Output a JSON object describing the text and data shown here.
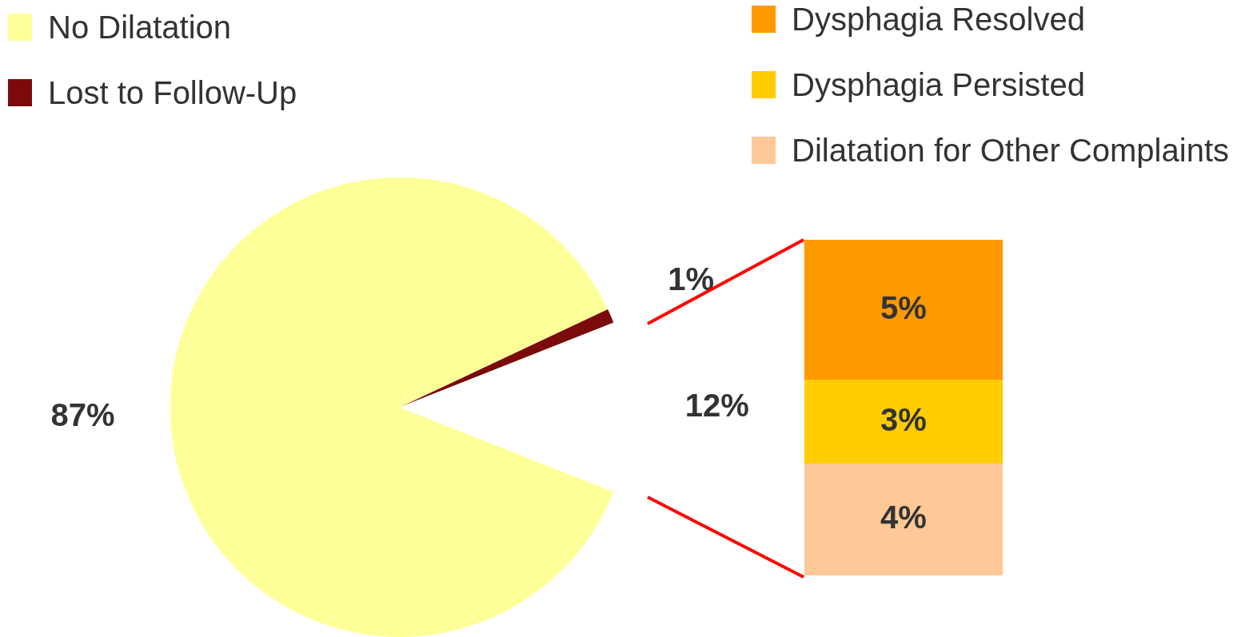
{
  "chart_data": [
    {
      "type": "pie",
      "categories": [
        "No Dilatation",
        "Lost to Follow-Up",
        null
      ],
      "values": [
        87,
        1,
        12
      ],
      "colors": [
        "#ffff99",
        "#7b0a0a",
        "#ffffff"
      ],
      "value_labels": [
        "87%",
        "1%",
        "12%"
      ],
      "legend": "top left"
    },
    {
      "type": "bar",
      "stacked": true,
      "categories": [
        null
      ],
      "legend": "top right",
      "series": [
        {
          "name": "Dilatation for Other Complaints",
          "color": "#fcc997",
          "values": [
            4
          ],
          "value_labels": [
            "4%"
          ]
        },
        {
          "name": "Dysphagia Persisted",
          "color": "#ffcc00",
          "values": [
            3
          ],
          "value_labels": [
            "3%"
          ]
        },
        {
          "name": "Dysphagia Resolved",
          "color": "#ff9900",
          "values": [
            5
          ],
          "value_labels": [
            "5%"
          ]
        }
      ]
    }
  ]
}
